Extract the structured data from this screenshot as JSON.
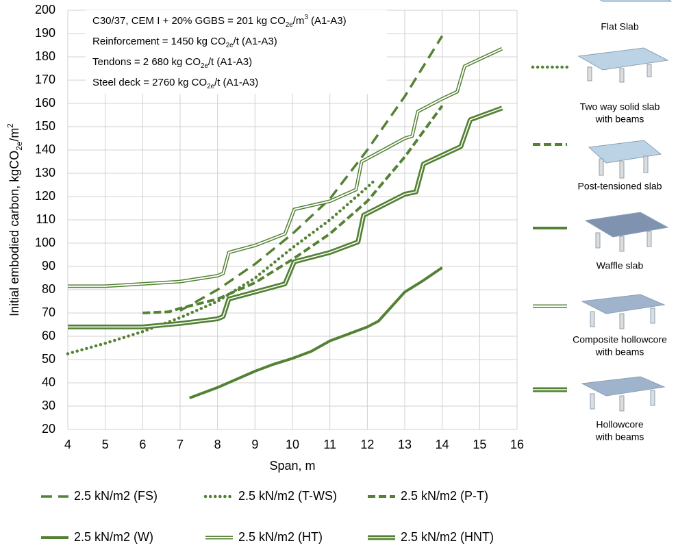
{
  "chart_data": {
    "type": "line",
    "x_label": "Span, m",
    "y_label": [
      {
        "t": "Initial embodied carbon, kgCO"
      },
      {
        "t": "2e",
        "s": "sub"
      },
      {
        "t": "/m"
      },
      {
        "t": "2",
        "s": "sup"
      }
    ],
    "xlim": [
      4,
      16
    ],
    "xticks": [
      4,
      5,
      6,
      7,
      8,
      9,
      10,
      11,
      12,
      13,
      14,
      15,
      16
    ],
    "ylim": [
      20,
      200
    ],
    "yticks": [
      20,
      30,
      40,
      50,
      60,
      70,
      80,
      90,
      100,
      110,
      120,
      130,
      140,
      150,
      160,
      170,
      180,
      190,
      200
    ],
    "grid": true,
    "annotations": [
      [
        {
          "t": "C30/37, CEM I + 20% GGBS = 201 kg CO"
        },
        {
          "t": "2e",
          "s": "sub"
        },
        {
          "t": "/m"
        },
        {
          "t": "3",
          "s": "sup"
        },
        {
          "t": " (A1-A3)"
        }
      ],
      [
        {
          "t": "Reinforcement  = 1450 kg CO"
        },
        {
          "t": "2e",
          "s": "sub"
        },
        {
          "t": "/t (A1-A3)"
        }
      ],
      [
        {
          "t": "Tendons = 2 680 kg CO"
        },
        {
          "t": "2e",
          "s": "sub"
        },
        {
          "t": "/t (A1-A3)"
        }
      ],
      [
        {
          "t": "Steel deck = 2760 kg CO"
        },
        {
          "t": "2e",
          "s": "sub"
        },
        {
          "t": "/t (A1-A3)"
        }
      ]
    ],
    "series": [
      {
        "name": "2.5 kN/m2 (FS)",
        "color": "#548235",
        "style": "long-dash",
        "x": [
          7,
          8,
          9,
          10,
          11,
          12,
          13,
          14
        ],
        "values": [
          71,
          80,
          91,
          104,
          119,
          140,
          163,
          189
        ]
      },
      {
        "name": "2.5 kN/m2 (T-WS)",
        "color": "#548235",
        "style": "dotted",
        "x": [
          4,
          5,
          6,
          7,
          8,
          9,
          10,
          11,
          12,
          12.2
        ],
        "values": [
          52.5,
          57,
          62,
          68,
          75,
          85,
          98,
          110,
          124,
          127
        ]
      },
      {
        "name": "2.5 kN/m2 (P-T)",
        "color": "#548235",
        "style": "short-dash",
        "x": [
          6,
          6.7,
          7,
          8,
          9,
          10,
          11,
          12,
          13,
          14
        ],
        "values": [
          70,
          70.5,
          72,
          76,
          83,
          93,
          104,
          118,
          137,
          159
        ]
      },
      {
        "name": "2.5 kN/m2 (W)",
        "color": "#548235",
        "style": "solid",
        "x": [
          7.25,
          8,
          9,
          9.5,
          10,
          10.5,
          11,
          12,
          12.3,
          13,
          13.5,
          14
        ],
        "values": [
          33.5,
          38,
          45,
          48,
          50.5,
          53.5,
          58,
          64,
          66.5,
          79,
          84,
          89.5
        ]
      },
      {
        "name": "2.5 kN/m2 (HT)",
        "color": "#548235",
        "style": "double",
        "x": [
          4,
          5,
          6,
          7,
          8,
          8.15,
          8.3,
          9,
          9.8,
          10.05,
          11,
          11.7,
          11.85,
          13,
          13.2,
          13.35,
          14,
          14.4,
          14.6,
          15,
          15.6
        ],
        "values": [
          81.5,
          81.5,
          82.5,
          83.5,
          86,
          87,
          96,
          99,
          104,
          114.5,
          118,
          123,
          135,
          145,
          146,
          156.5,
          162,
          165,
          176,
          179,
          183.5
        ]
      },
      {
        "name": "2.5 kN/m2 (HNT)",
        "color": "#548235",
        "style": "double-thick",
        "x": [
          4,
          6,
          7,
          8,
          8.15,
          8.3,
          9,
          9.8,
          10.05,
          11,
          11.75,
          11.9,
          13,
          13.3,
          13.5,
          14.5,
          14.75,
          15.6
        ],
        "values": [
          64,
          64,
          65.5,
          67.5,
          68.5,
          76,
          79,
          82.5,
          92,
          96,
          100.5,
          112,
          121,
          122,
          134,
          141.5,
          153,
          158
        ]
      }
    ],
    "slab_types": [
      {
        "label": [
          "Flat Slab"
        ]
      },
      {
        "label": [
          "Two way solid slab",
          "with beams"
        ],
        "line": 1
      },
      {
        "label": [
          "Post-tensioned slab"
        ],
        "line": 2
      },
      {
        "label": [
          "Waffle slab"
        ],
        "line": 3
      },
      {
        "label": [
          "Composite hollowcore",
          "with beams"
        ],
        "line": 4
      },
      {
        "label": [
          "Hollowcore",
          "with beams"
        ],
        "line": 5
      }
    ]
  }
}
